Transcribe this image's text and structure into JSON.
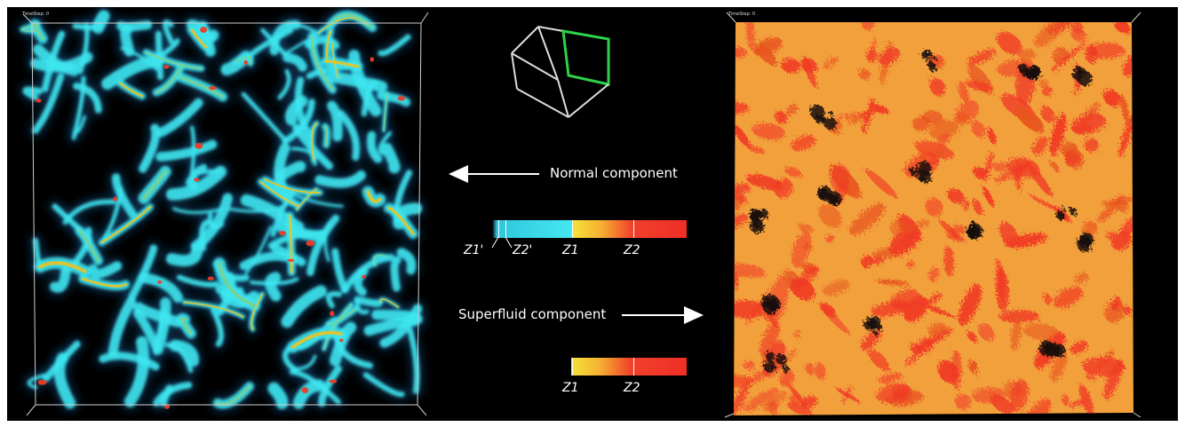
{
  "left_panel": {
    "timestep_label": "TimeStep: 0"
  },
  "right_panel": {
    "timestep_label": "TimeStep: 0"
  },
  "legend": {
    "normal_label": "Normal component",
    "superfluid_label": "Superfluid component",
    "normal_scale_ticks": [
      "Z1'",
      "Z2'",
      "Z1",
      "Z2"
    ],
    "superfluid_scale_ticks": [
      "Z1",
      "Z2"
    ]
  },
  "colors": {
    "background": "#000000",
    "normal_low": "#3ee6f0",
    "mid": "#f5c21a",
    "high": "#f03a25",
    "superfluid_base": "#f4a23a",
    "cube_frame": "#ffffff",
    "cube_highlight": "#22c23a"
  },
  "icons": {
    "left_arrow": "arrow-left-icon",
    "right_arrow": "arrow-right-icon",
    "orientation_cube": "orientation-cube-icon"
  }
}
